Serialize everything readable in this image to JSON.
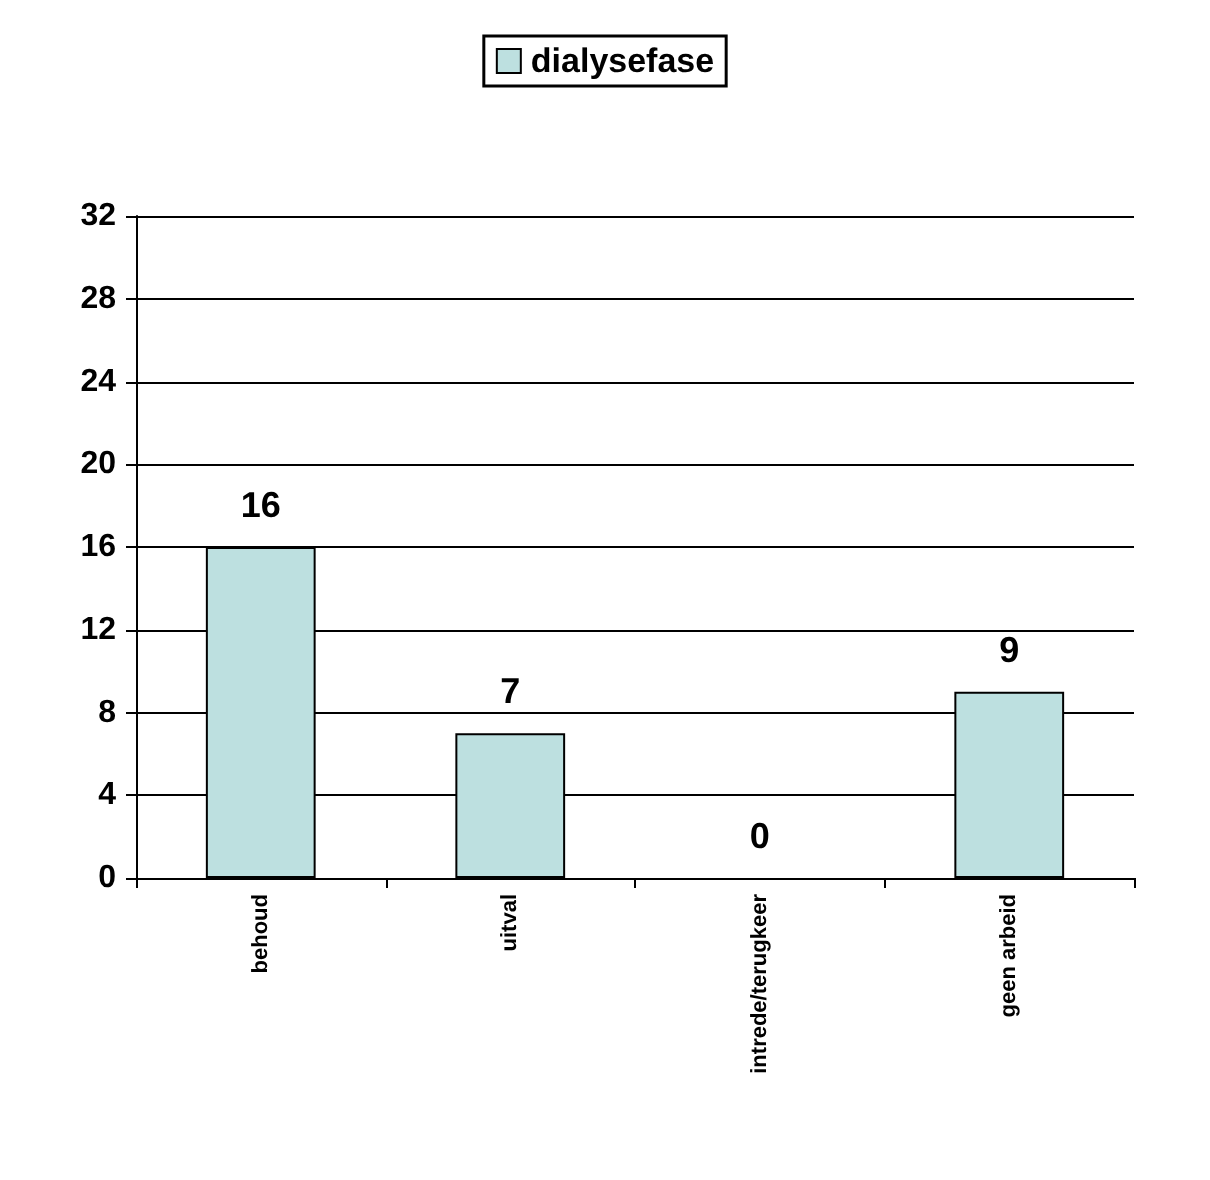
{
  "chart_data": {
    "type": "bar",
    "categories": [
      "behoud",
      "uitval",
      "intrede/terugkeer",
      "geen arbeid"
    ],
    "series": [
      {
        "name": "dialysefase",
        "color": "#bde0e0",
        "values": [
          16,
          7,
          0,
          9
        ]
      }
    ],
    "ylim": [
      0,
      32
    ],
    "yticks": [
      0,
      4,
      8,
      12,
      16,
      20,
      24,
      28,
      32
    ],
    "grid": "y",
    "legend": "top",
    "data_labels": true
  }
}
